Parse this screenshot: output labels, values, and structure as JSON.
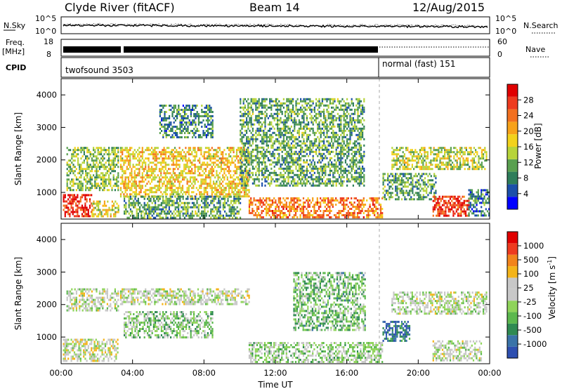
{
  "header": {
    "station": "Clyde River (fitACF)",
    "beam": "Beam 14",
    "date": "12/Aug/2015"
  },
  "nsky_panel": {
    "label": "N.Sky",
    "left_ticks": [
      "10^5",
      "10^0"
    ],
    "right_ticks": [
      "10^5",
      "10^0"
    ],
    "right_label": "N.Search"
  },
  "freq_panel": {
    "label_line1": "Freq.",
    "label_line2": "[MHz]",
    "left_ticks": [
      "18",
      "8"
    ],
    "right_ticks": [
      "60",
      "0"
    ],
    "right_label": "Nave"
  },
  "cpid_panel": {
    "label": "CPID",
    "mode1": "twofsound 3503",
    "mode2": "normal (fast) 151"
  },
  "power_panel": {
    "ylabel": "Slant Range [km]",
    "yticks": [
      "4000",
      "3000",
      "2000",
      "1000"
    ],
    "colorbar_label": "Power [dB]",
    "colorbar_ticks": [
      "28",
      "24",
      "20",
      "16",
      "12",
      "8",
      "4"
    ],
    "colors": [
      "#0000ff",
      "#1b4faa",
      "#2e7d5a",
      "#5aa050",
      "#b7d43a",
      "#f2d21c",
      "#f7a21a",
      "#f27020",
      "#ee3b1f",
      "#e00000"
    ]
  },
  "velocity_panel": {
    "ylabel": "Slant Range [km]",
    "yticks": [
      "4000",
      "3000",
      "2000",
      "1000"
    ],
    "colorbar_label": "Velocity [m s",
    "colorbar_label_sup": "-1",
    "colorbar_label_end": "]",
    "colorbar_ticks": [
      "1000",
      "500",
      "100",
      "25",
      "-25",
      "-100",
      "-500",
      "-1000"
    ],
    "colors": [
      "#2e4fb0",
      "#3a73a8",
      "#2f8a52",
      "#5cb84e",
      "#8fd45a",
      "#c8c8c8",
      "#c8c8c8",
      "#f4b41a",
      "#f2841c",
      "#ee3b1f",
      "#e00000"
    ]
  },
  "xaxis": {
    "label": "Time UT",
    "ticks": [
      "00:00",
      "04:00",
      "08:00",
      "12:00",
      "16:00",
      "20:00",
      "00:00"
    ]
  },
  "chart_data": [
    {
      "type": "heatmap",
      "title": "Clyde River (fitACF) Beam 14 12/Aug/2015",
      "quantity": "Power [dB]",
      "xlabel": "Time UT",
      "ylabel": "Slant Range [km]",
      "xlim": [
        "00:00",
        "24:00"
      ],
      "ylim": [
        180,
        4500
      ],
      "colorbar_range": [
        0,
        30
      ],
      "regions": [
        {
          "t0": 0.1,
          "t1": 1.7,
          "r0": 250,
          "r1": 950,
          "power": 27
        },
        {
          "t0": 1.7,
          "t1": 3.2,
          "r0": 250,
          "r1": 750,
          "power": 16
        },
        {
          "t0": 0.3,
          "t1": 3.2,
          "r0": 1100,
          "r1": 2400,
          "power": 12
        },
        {
          "t0": 3.3,
          "t1": 10.5,
          "r0": 900,
          "r1": 2400,
          "power": 17
        },
        {
          "t0": 3.5,
          "t1": 10.0,
          "r0": 250,
          "r1": 900,
          "power": 10
        },
        {
          "t0": 5.5,
          "t1": 8.5,
          "r0": 2700,
          "r1": 3700,
          "power": 8
        },
        {
          "t0": 10.5,
          "t1": 18.0,
          "r0": 250,
          "r1": 850,
          "power": 22
        },
        {
          "t0": 10.0,
          "t1": 17.0,
          "r0": 1200,
          "r1": 3900,
          "power": 10
        },
        {
          "t0": 18.0,
          "t1": 21.0,
          "r0": 800,
          "r1": 1600,
          "power": 10
        },
        {
          "t0": 18.5,
          "t1": 23.8,
          "r0": 1700,
          "r1": 2400,
          "power": 14
        },
        {
          "t0": 20.8,
          "t1": 22.8,
          "r0": 300,
          "r1": 900,
          "power": 26
        },
        {
          "t0": 22.8,
          "t1": 24.0,
          "r0": 300,
          "r1": 1100,
          "power": 7
        }
      ]
    },
    {
      "type": "heatmap",
      "title": "Clyde River (fitACF) Beam 14 12/Aug/2015",
      "quantity": "Velocity [m s-1]",
      "xlabel": "Time UT",
      "ylabel": "Slant Range [km]",
      "xlim": [
        "00:00",
        "24:00"
      ],
      "ylim": [
        180,
        4500
      ],
      "colorbar_range": [
        -1000,
        1000
      ],
      "regions": [
        {
          "t0": 0.1,
          "t1": 3.2,
          "r0": 250,
          "r1": 950,
          "velocity": 60
        },
        {
          "t0": 0.3,
          "t1": 3.2,
          "r0": 1800,
          "r1": 2500,
          "velocity": 0
        },
        {
          "t0": 3.3,
          "t1": 10.5,
          "r0": 2000,
          "r1": 2500,
          "velocity": 0
        },
        {
          "t0": 3.5,
          "t1": 8.5,
          "r0": 1000,
          "r1": 1800,
          "velocity": -200
        },
        {
          "t0": 10.5,
          "t1": 18.0,
          "r0": 250,
          "r1": 850,
          "velocity": -150
        },
        {
          "t0": 13.0,
          "t1": 17.0,
          "r0": 1200,
          "r1": 3000,
          "velocity": -300
        },
        {
          "t0": 18.0,
          "t1": 19.5,
          "r0": 900,
          "r1": 1500,
          "velocity": -700
        },
        {
          "t0": 18.5,
          "t1": 23.8,
          "r0": 1700,
          "r1": 2400,
          "velocity": 0
        },
        {
          "t0": 20.8,
          "t1": 23.5,
          "r0": 300,
          "r1": 900,
          "velocity": 0
        }
      ]
    }
  ]
}
